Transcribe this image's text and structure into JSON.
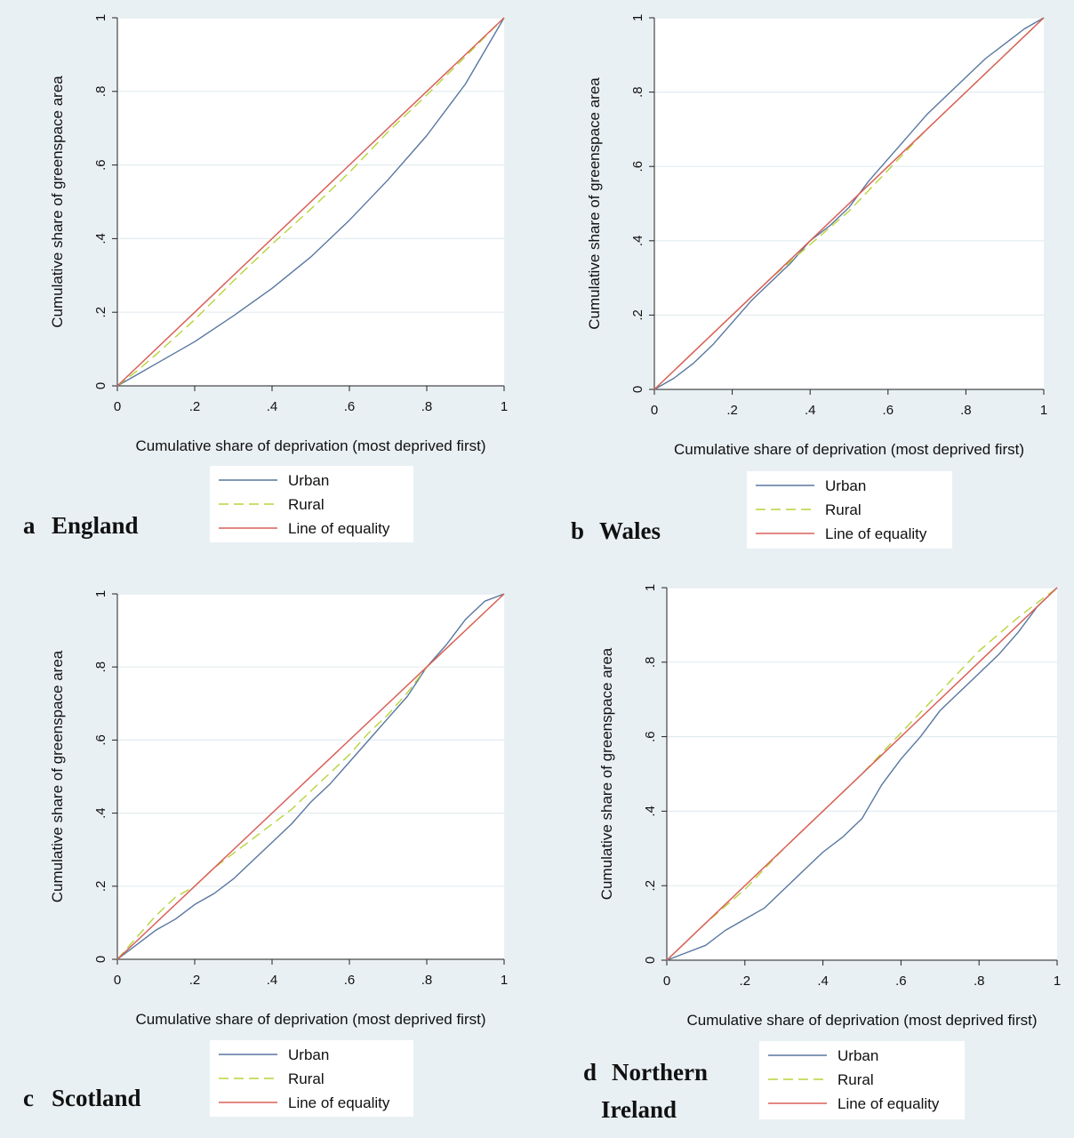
{
  "colors": {
    "urban": "#5877a0",
    "rural": "#b8d43a",
    "equality": "#d9605a",
    "background": "#e9f0f3",
    "plot": "#ffffff",
    "grid": "#e3ecef"
  },
  "chart_data": [
    {
      "id": "a",
      "type": "line",
      "panel_letter": "a",
      "panel_title": [
        "England"
      ],
      "xlabel": "Cumulative share of deprivation (most deprived first)",
      "ylabel": "Cumulative share of greenspace area",
      "xlim": [
        0,
        1
      ],
      "ylim": [
        0,
        1
      ],
      "x_ticks": [
        "0",
        ".2",
        ".4",
        ".6",
        ".8",
        "1"
      ],
      "y_ticks": [
        "0",
        ".2",
        ".4",
        ".6",
        ".8",
        "1"
      ],
      "grid": true,
      "legend": [
        "Urban",
        "Rural",
        "Line of equality"
      ],
      "series": [
        {
          "name": "Urban",
          "style": "solid",
          "x": [
            0,
            0.05,
            0.1,
            0.2,
            0.3,
            0.4,
            0.5,
            0.6,
            0.7,
            0.8,
            0.9,
            1.0
          ],
          "y": [
            0,
            0.03,
            0.06,
            0.12,
            0.19,
            0.265,
            0.35,
            0.45,
            0.56,
            0.68,
            0.82,
            1.0
          ]
        },
        {
          "name": "Rural",
          "style": "dashed",
          "x": [
            0,
            0.05,
            0.1,
            0.2,
            0.3,
            0.4,
            0.5,
            0.6,
            0.7,
            0.8,
            0.9,
            1.0
          ],
          "y": [
            0,
            0.04,
            0.085,
            0.18,
            0.285,
            0.385,
            0.48,
            0.58,
            0.69,
            0.79,
            0.895,
            1.0
          ]
        },
        {
          "name": "Line of equality",
          "style": "solid",
          "x": [
            0,
            1
          ],
          "y": [
            0,
            1
          ]
        }
      ]
    },
    {
      "id": "b",
      "type": "line",
      "panel_letter": "b",
      "panel_title": [
        "Wales"
      ],
      "xlabel": "Cumulative share of deprivation (most deprived first)",
      "ylabel": "Cumulative share of greenspace area",
      "xlim": [
        0,
        1
      ],
      "ylim": [
        0,
        1
      ],
      "x_ticks": [
        "0",
        ".2",
        ".4",
        ".6",
        ".8",
        "1"
      ],
      "y_ticks": [
        "0",
        ".2",
        ".4",
        ".6",
        ".8",
        "1"
      ],
      "grid": true,
      "legend": [
        "Urban",
        "Rural",
        "Line of equality"
      ],
      "series": [
        {
          "name": "Urban",
          "style": "solid",
          "x": [
            0,
            0.05,
            0.1,
            0.15,
            0.2,
            0.25,
            0.3,
            0.35,
            0.4,
            0.45,
            0.5,
            0.55,
            0.6,
            0.65,
            0.7,
            0.75,
            0.8,
            0.85,
            0.9,
            0.95,
            1.0
          ],
          "y": [
            0,
            0.03,
            0.07,
            0.12,
            0.18,
            0.24,
            0.29,
            0.34,
            0.4,
            0.44,
            0.49,
            0.56,
            0.62,
            0.68,
            0.74,
            0.79,
            0.84,
            0.89,
            0.93,
            0.97,
            1.0
          ]
        },
        {
          "name": "Rural",
          "style": "dashed",
          "x": [
            0,
            0.1,
            0.2,
            0.3,
            0.4,
            0.5,
            0.6,
            0.7,
            0.8,
            0.9,
            1.0
          ],
          "y": [
            0,
            0.1,
            0.2,
            0.3,
            0.39,
            0.48,
            0.59,
            0.7,
            0.8,
            0.9,
            1.0
          ]
        },
        {
          "name": "Line of equality",
          "style": "solid",
          "x": [
            0,
            1
          ],
          "y": [
            0,
            1
          ]
        }
      ]
    },
    {
      "id": "c",
      "type": "line",
      "panel_letter": "c",
      "panel_title": [
        "Scotland"
      ],
      "xlabel": "Cumulative share of deprivation (most deprived first)",
      "ylabel": "Cumulative share of greenspace area",
      "xlim": [
        0,
        1
      ],
      "ylim": [
        0,
        1
      ],
      "x_ticks": [
        "0",
        ".2",
        ".4",
        ".6",
        ".8",
        "1"
      ],
      "y_ticks": [
        "0",
        ".2",
        ".4",
        ".6",
        ".8",
        "1"
      ],
      "grid": true,
      "legend": [
        "Urban",
        "Rural",
        "Line of equality"
      ],
      "series": [
        {
          "name": "Urban",
          "style": "solid",
          "x": [
            0,
            0.05,
            0.1,
            0.15,
            0.2,
            0.25,
            0.3,
            0.35,
            0.4,
            0.45,
            0.5,
            0.55,
            0.6,
            0.65,
            0.7,
            0.75,
            0.8,
            0.85,
            0.9,
            0.95,
            1.0
          ],
          "y": [
            0,
            0.04,
            0.08,
            0.11,
            0.15,
            0.18,
            0.22,
            0.27,
            0.32,
            0.37,
            0.43,
            0.48,
            0.54,
            0.6,
            0.66,
            0.72,
            0.8,
            0.86,
            0.93,
            0.98,
            1.0
          ]
        },
        {
          "name": "Rural",
          "style": "dashed",
          "x": [
            0,
            0.05,
            0.1,
            0.15,
            0.2,
            0.25,
            0.3,
            0.35,
            0.4,
            0.45,
            0.5,
            0.55,
            0.6,
            0.65,
            0.7,
            0.75,
            0.8,
            0.85,
            0.9,
            0.95,
            1.0
          ],
          "y": [
            0,
            0.06,
            0.12,
            0.17,
            0.2,
            0.25,
            0.29,
            0.33,
            0.37,
            0.41,
            0.46,
            0.51,
            0.56,
            0.62,
            0.67,
            0.73,
            0.8,
            0.85,
            0.9,
            0.95,
            1.0
          ]
        },
        {
          "name": "Line of equality",
          "style": "solid",
          "x": [
            0,
            1
          ],
          "y": [
            0,
            1
          ]
        }
      ]
    },
    {
      "id": "d",
      "type": "line",
      "panel_letter": "d",
      "panel_title": [
        "Northern",
        "Ireland"
      ],
      "xlabel": "Cumulative share of deprivation (most deprived first)",
      "ylabel": "Cumulative share of greenspace area",
      "xlim": [
        0,
        1
      ],
      "ylim": [
        0,
        1
      ],
      "x_ticks": [
        "0",
        ".2",
        ".4",
        ".6",
        ".8",
        "1"
      ],
      "y_ticks": [
        "0",
        ".2",
        ".4",
        ".6",
        ".8",
        "1"
      ],
      "grid": true,
      "legend": [
        "Urban",
        "Rural",
        "Line of equality"
      ],
      "series": [
        {
          "name": "Urban",
          "style": "solid",
          "x": [
            0,
            0.05,
            0.1,
            0.15,
            0.2,
            0.25,
            0.3,
            0.35,
            0.4,
            0.45,
            0.5,
            0.55,
            0.6,
            0.65,
            0.7,
            0.75,
            0.8,
            0.85,
            0.9,
            0.95,
            1.0
          ],
          "y": [
            0,
            0.02,
            0.04,
            0.08,
            0.11,
            0.14,
            0.19,
            0.24,
            0.29,
            0.33,
            0.38,
            0.47,
            0.54,
            0.6,
            0.67,
            0.72,
            0.77,
            0.82,
            0.88,
            0.95,
            1.0
          ]
        },
        {
          "name": "Rural",
          "style": "dashed",
          "x": [
            0,
            0.1,
            0.2,
            0.3,
            0.4,
            0.5,
            0.6,
            0.7,
            0.8,
            0.9,
            1.0
          ],
          "y": [
            0,
            0.1,
            0.19,
            0.3,
            0.4,
            0.5,
            0.61,
            0.72,
            0.83,
            0.92,
            1.0
          ]
        },
        {
          "name": "Line of equality",
          "style": "solid",
          "x": [
            0,
            1
          ],
          "y": [
            0,
            1
          ]
        }
      ]
    }
  ]
}
